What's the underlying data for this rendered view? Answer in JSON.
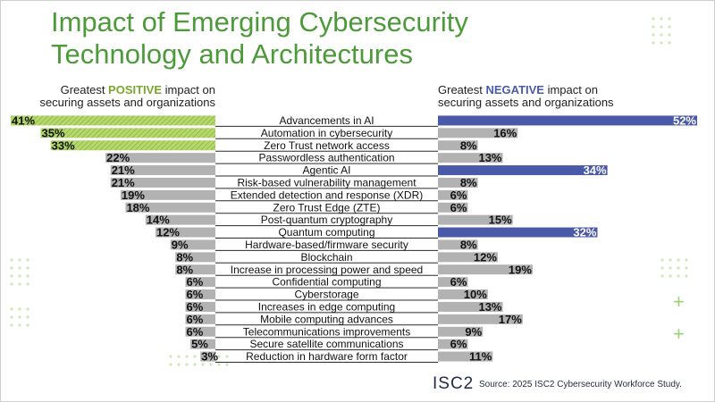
{
  "title_line1": "Impact of Emerging Cybersecurity",
  "title_line2": "Technology and Architectures",
  "positive_header": {
    "before": "Greatest ",
    "emphasis": "POSITIVE",
    "after": " impact on",
    "line2": "securing assets and organizations"
  },
  "negative_header": {
    "before": "Greatest ",
    "emphasis": "NEGATIVE",
    "after": " impact on",
    "line2": "securing assets and organizations"
  },
  "colors": {
    "title": "#4d9a3a",
    "positive_top": "#b5d86a",
    "negative_top": "#4b5aa8",
    "neutral_bar": "#b2b2b2",
    "row_line": "#2a2a2a"
  },
  "chart_data": {
    "type": "bar",
    "orientation": "horizontal",
    "categories": [
      "Advancements in AI",
      "Automation in cybersecurity",
      "Zero Trust network access",
      "Passwordless authentication",
      "Agentic AI",
      "Risk-based vulnerability management",
      "Extended detection and response (XDR)",
      "Zero Trust Edge (ZTE)",
      "Post-quantum cryptography",
      "Quantum computing",
      "Hardware-based/firmware security",
      "Blockchain",
      "Increase in processing power and speed",
      "Confidential computing",
      "Cyberstorage",
      "Increases in edge computing",
      "Mobile computing advances",
      "Telecommunications improvements",
      "Secure satellite communications",
      "Reduction in hardware form factor"
    ],
    "series": [
      {
        "name": "Greatest POSITIVE impact on securing assets and organizations",
        "values": [
          41,
          35,
          33,
          22,
          21,
          21,
          19,
          18,
          14,
          12,
          9,
          8,
          8,
          6,
          6,
          6,
          6,
          6,
          5,
          3
        ],
        "labels": [
          "41%",
          "35%",
          "33%",
          "22%",
          "21%",
          "21%",
          "19%",
          "18%",
          "14%",
          "12%",
          "9%",
          "8%",
          "8%",
          "6%",
          "6%",
          "6%",
          "6%",
          "6%",
          "5%",
          "3%"
        ],
        "highlighted": [
          0,
          1,
          2
        ]
      },
      {
        "name": "Greatest NEGATIVE impact on securing assets and organizations",
        "values": [
          52,
          16,
          8,
          13,
          34,
          8,
          6,
          6,
          15,
          32,
          8,
          12,
          19,
          6,
          10,
          13,
          17,
          9,
          6,
          11
        ],
        "labels": [
          "52%",
          "16%",
          "8%",
          "13%",
          "34%",
          "8%",
          "6%",
          "6%",
          "15%",
          "32%",
          "8%",
          "12%",
          "19%",
          "6%",
          "10%",
          "13%",
          "17%",
          "9%",
          "6%",
          "11%"
        ],
        "highlighted": [
          0,
          4,
          9
        ]
      }
    ]
  },
  "logo_text": "ISC2",
  "source": "Source: 2025 ISC2 Cybersecurity Workforce Study."
}
